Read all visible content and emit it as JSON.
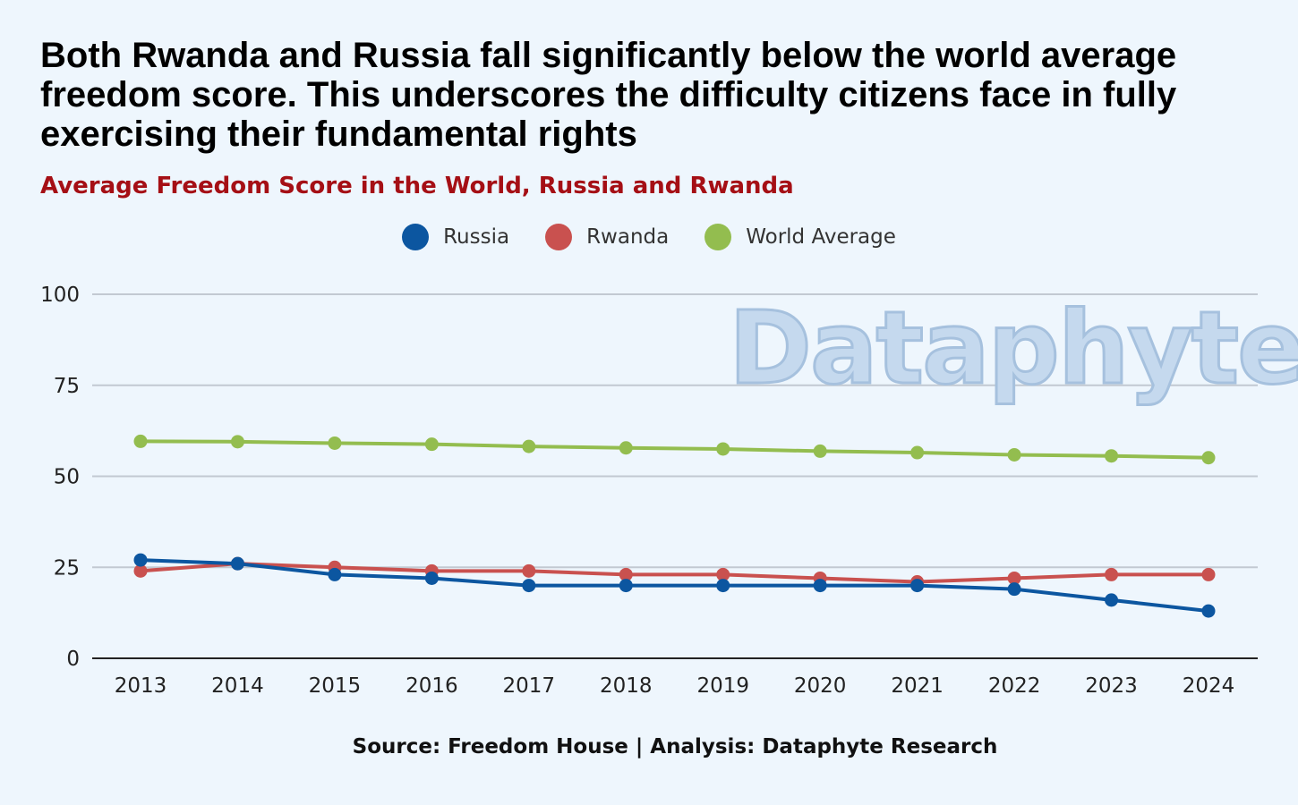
{
  "colors": {
    "background": "#eef6fd",
    "subtitle": "#a50f15",
    "grid": "#c2c9d2"
  },
  "watermark": "Dataphyte",
  "source": "Source: Freedom House | Analysis: Dataphyte Research",
  "chart_data": {
    "type": "line",
    "title": "Both Rwanda and Russia fall significantly below the world average freedom score. This underscores the difficulty citizens face in fully exercising their fundamental rights",
    "subtitle": "Average Freedom Score in the World, Russia and Rwanda",
    "xlabel": "",
    "ylabel": "",
    "x": [
      "2013",
      "2014",
      "2015",
      "2016",
      "2017",
      "2018",
      "2019",
      "2020",
      "2021",
      "2022",
      "2023",
      "2024"
    ],
    "yticks": [
      0,
      25,
      50,
      75,
      100
    ],
    "ylim": [
      0,
      100
    ],
    "grid": true,
    "legend_position": "top-center",
    "series": [
      {
        "name": "Russia",
        "color": "#0c56a0",
        "values": [
          27,
          26,
          23,
          22,
          20,
          20,
          20,
          20,
          20,
          19,
          16,
          13
        ]
      },
      {
        "name": "Rwanda",
        "color": "#c9514f",
        "values": [
          24,
          26,
          25,
          24,
          24,
          23,
          23,
          22,
          21,
          22,
          23,
          23
        ]
      },
      {
        "name": "World Average",
        "color": "#93bd4f",
        "values": [
          59.6,
          59.5,
          59.1,
          58.8,
          58.2,
          57.8,
          57.5,
          56.9,
          56.5,
          55.9,
          55.6,
          55.1
        ]
      }
    ]
  }
}
